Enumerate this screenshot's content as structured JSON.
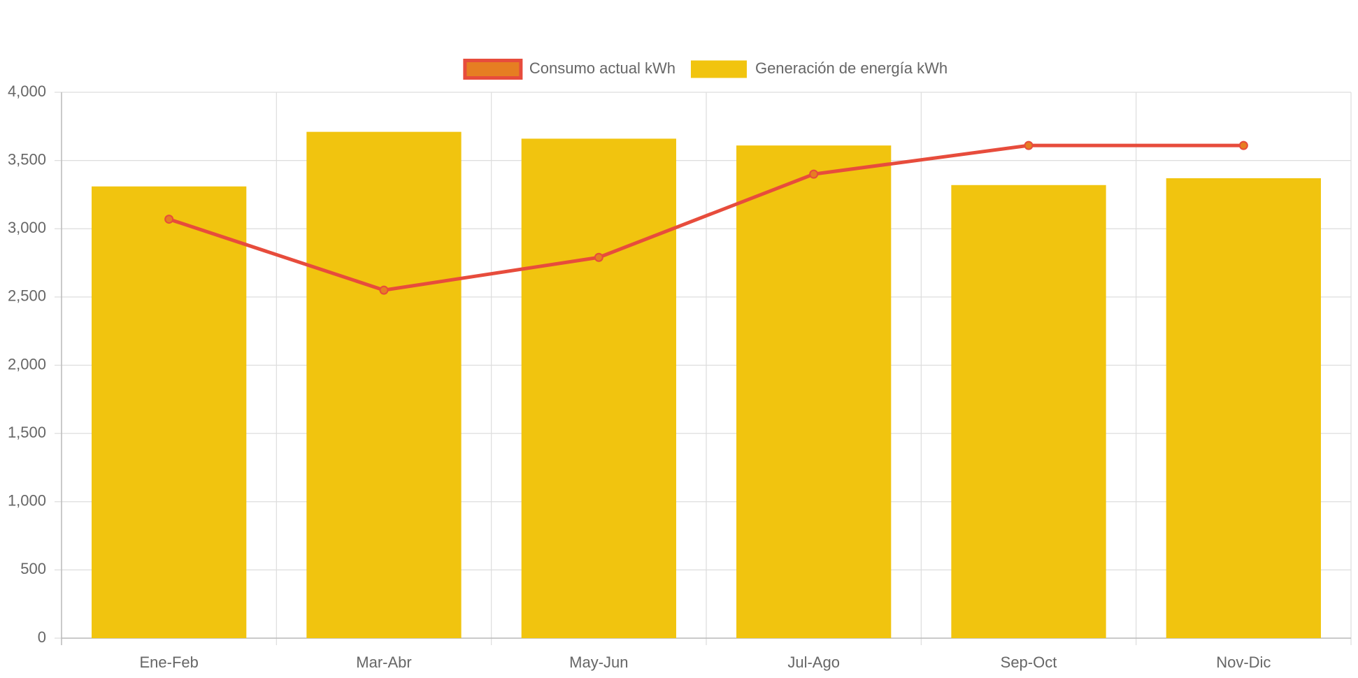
{
  "chart_data": {
    "type": "bar-line",
    "categories": [
      "Ene-Feb",
      "Mar-Abr",
      "May-Jun",
      "Jul-Ago",
      "Sep-Oct",
      "Nov-Dic"
    ],
    "series": [
      {
        "name": "Consumo actual kWh",
        "type": "line",
        "color": "#e74c3c",
        "point_color": "#e67e22",
        "values": [
          3070,
          2550,
          2790,
          3400,
          3610,
          3610
        ]
      },
      {
        "name": "Generación de energía kWh",
        "type": "bar",
        "color": "#f1c40f",
        "values": [
          3310,
          3710,
          3660,
          3610,
          3320,
          3370
        ]
      }
    ],
    "ylim": [
      0,
      4000
    ],
    "yticks": [
      0,
      500,
      {
        "value": 1000,
        "label": "1,000"
      },
      {
        "value": 1500,
        "label": "1,500"
      },
      {
        "value": 2000,
        "label": "2,000"
      },
      {
        "value": 2500,
        "label": "2,500"
      },
      {
        "value": 3000,
        "label": "3,000"
      },
      {
        "value": 3500,
        "label": "3,500"
      },
      {
        "value": 4000,
        "label": "4,000"
      }
    ],
    "grid": true,
    "legend": "top"
  }
}
